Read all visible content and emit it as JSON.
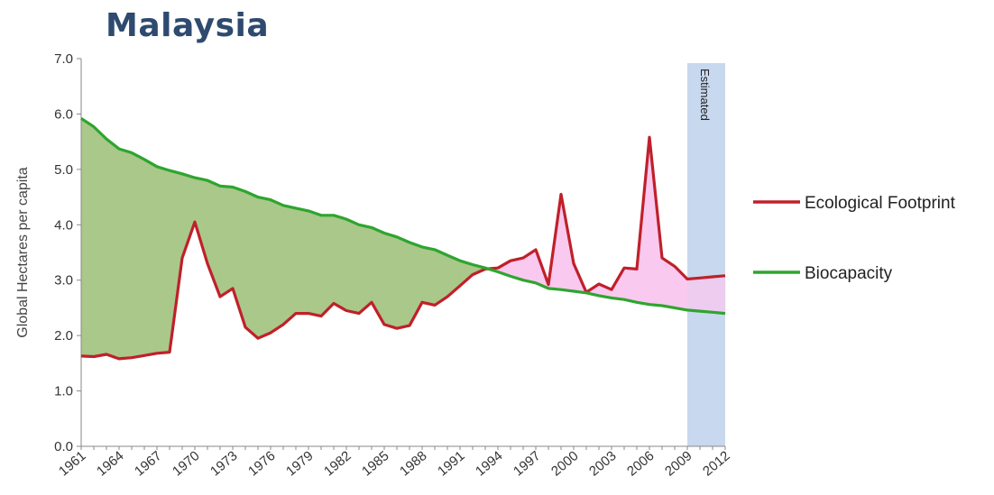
{
  "title": "Malaysia",
  "chart_data": {
    "type": "line",
    "ylabel": "Global Hectares per capita",
    "ylim": [
      0,
      7
    ],
    "y_ticks": [
      "0.0",
      "1.0",
      "2.0",
      "3.0",
      "4.0",
      "5.0",
      "6.0",
      "7.0"
    ],
    "x_ticks": [
      "1961",
      "1964",
      "1967",
      "1970",
      "1973",
      "1976",
      "1979",
      "1982",
      "1985",
      "1988",
      "1991",
      "1994",
      "1997",
      "2000",
      "2003",
      "2006",
      "2009",
      "2012"
    ],
    "x": [
      1961,
      1962,
      1963,
      1964,
      1965,
      1966,
      1967,
      1968,
      1969,
      1970,
      1971,
      1972,
      1973,
      1974,
      1975,
      1976,
      1977,
      1978,
      1979,
      1980,
      1981,
      1982,
      1983,
      1984,
      1985,
      1986,
      1987,
      1988,
      1989,
      1990,
      1991,
      1992,
      1993,
      1994,
      1995,
      1996,
      1997,
      1998,
      1999,
      2000,
      2001,
      2002,
      2003,
      2004,
      2005,
      2006,
      2007,
      2008,
      2009,
      2010,
      2011,
      2012
    ],
    "series": [
      {
        "name": "Ecological Footprint",
        "color": "#c0202a",
        "values": [
          1.63,
          1.62,
          1.66,
          1.58,
          1.6,
          1.64,
          1.68,
          1.7,
          3.4,
          4.05,
          3.3,
          2.7,
          2.85,
          2.15,
          1.95,
          2.05,
          2.2,
          2.4,
          2.4,
          2.35,
          2.58,
          2.45,
          2.4,
          2.6,
          2.2,
          2.13,
          2.18,
          2.6,
          2.55,
          2.7,
          2.9,
          3.1,
          3.2,
          3.22,
          3.35,
          3.4,
          3.55,
          2.92,
          4.55,
          3.3,
          2.78,
          2.93,
          2.83,
          3.22,
          3.2,
          5.58,
          3.4,
          3.25,
          3.02,
          3.04,
          3.06,
          3.08
        ]
      },
      {
        "name": "Biocapacity",
        "color": "#2ea52e",
        "values": [
          5.92,
          5.77,
          5.55,
          5.37,
          5.3,
          5.18,
          5.05,
          4.98,
          4.92,
          4.85,
          4.8,
          4.7,
          4.68,
          4.6,
          4.5,
          4.45,
          4.35,
          4.3,
          4.25,
          4.17,
          4.17,
          4.1,
          4.0,
          3.95,
          3.85,
          3.78,
          3.68,
          3.6,
          3.55,
          3.45,
          3.35,
          3.28,
          3.22,
          3.15,
          3.07,
          3.0,
          2.95,
          2.85,
          2.83,
          2.8,
          2.77,
          2.72,
          2.68,
          2.65,
          2.6,
          2.56,
          2.54,
          2.5,
          2.46,
          2.44,
          2.42,
          2.4
        ]
      }
    ],
    "shaded_region": {
      "from": 2009,
      "to": 2012,
      "label": "Estimated",
      "color": "#c8d8ee"
    },
    "fills": {
      "deficit_color": "#f9c9f0",
      "reserve_color": "#a9c88a"
    },
    "legend": {
      "position": "right"
    },
    "grid": false
  }
}
